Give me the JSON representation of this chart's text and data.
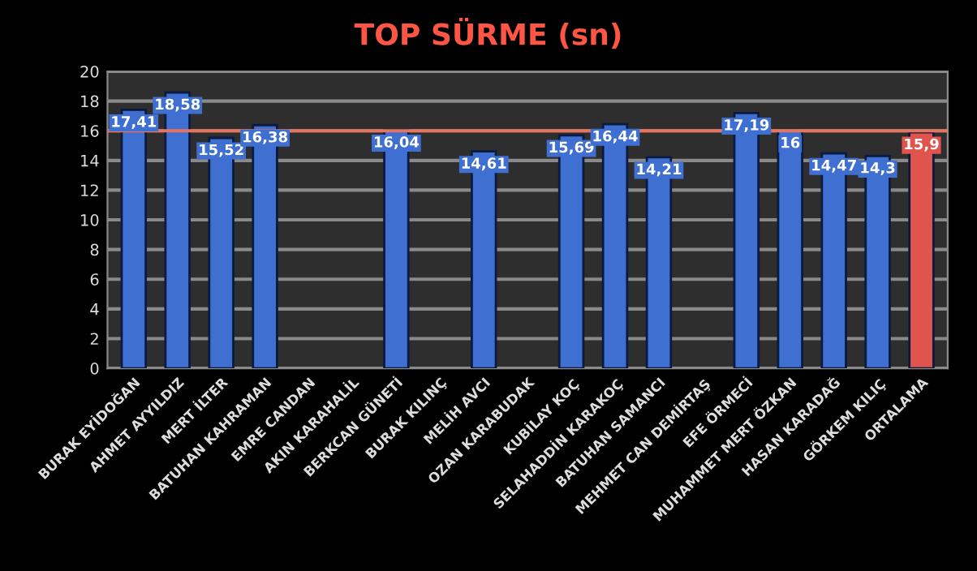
{
  "chart_data": {
    "type": "bar",
    "title": "TOP SÜRME (sn)",
    "categories": [
      "BURAK EYİDOĞAN",
      "AHMET AYYILDIZ",
      "MERT İLTER",
      "BATUHAN KAHRAMAN",
      "EMRE CANDAN",
      "AKIN KARAHALİL",
      "BERKCAN GÜNETİ",
      "BURAK KILINÇ",
      "MELİH AVCI",
      "OZAN KARABUDAK",
      "KUBİLAY KOÇ",
      "SELAHADDİN KARAKOÇ",
      "BATUHAN SAMANCI",
      "MEHMET CAN DEMİRTAŞ",
      "EFE ÖRMECİ",
      "MUHAMMET MERT ÖZKAN",
      "HASAN KARADAĞ",
      "GÖRKEM KILIÇ",
      "ORTALAMA"
    ],
    "values": [
      17.41,
      18.58,
      15.52,
      16.38,
      null,
      null,
      16.04,
      null,
      14.61,
      null,
      15.69,
      16.44,
      14.21,
      null,
      17.19,
      16,
      14.47,
      14.3,
      15.9
    ],
    "value_labels": [
      "17,41",
      "18,58",
      "15,52",
      "16,38",
      null,
      null,
      "16,04",
      null,
      "14,61",
      null,
      "15,69",
      "16,44",
      "14,21",
      null,
      "17,19",
      "16",
      "14,47",
      "14,3",
      "15,9"
    ],
    "colors": [
      "#3f6fd0",
      "#3f6fd0",
      "#3f6fd0",
      "#3f6fd0",
      "#3f6fd0",
      "#3f6fd0",
      "#3f6fd0",
      "#3f6fd0",
      "#3f6fd0",
      "#3f6fd0",
      "#3f6fd0",
      "#3f6fd0",
      "#3f6fd0",
      "#3f6fd0",
      "#3f6fd0",
      "#3f6fd0",
      "#3f6fd0",
      "#3f6fd0",
      "#e0544e"
    ],
    "ylim": [
      0,
      20
    ],
    "yticks": [
      0,
      2,
      4,
      6,
      8,
      10,
      12,
      14,
      16,
      18,
      20
    ],
    "grid": "y",
    "ref_lines": [
      {
        "axis": "y",
        "value": 16,
        "color": "#e8735f"
      }
    ]
  }
}
